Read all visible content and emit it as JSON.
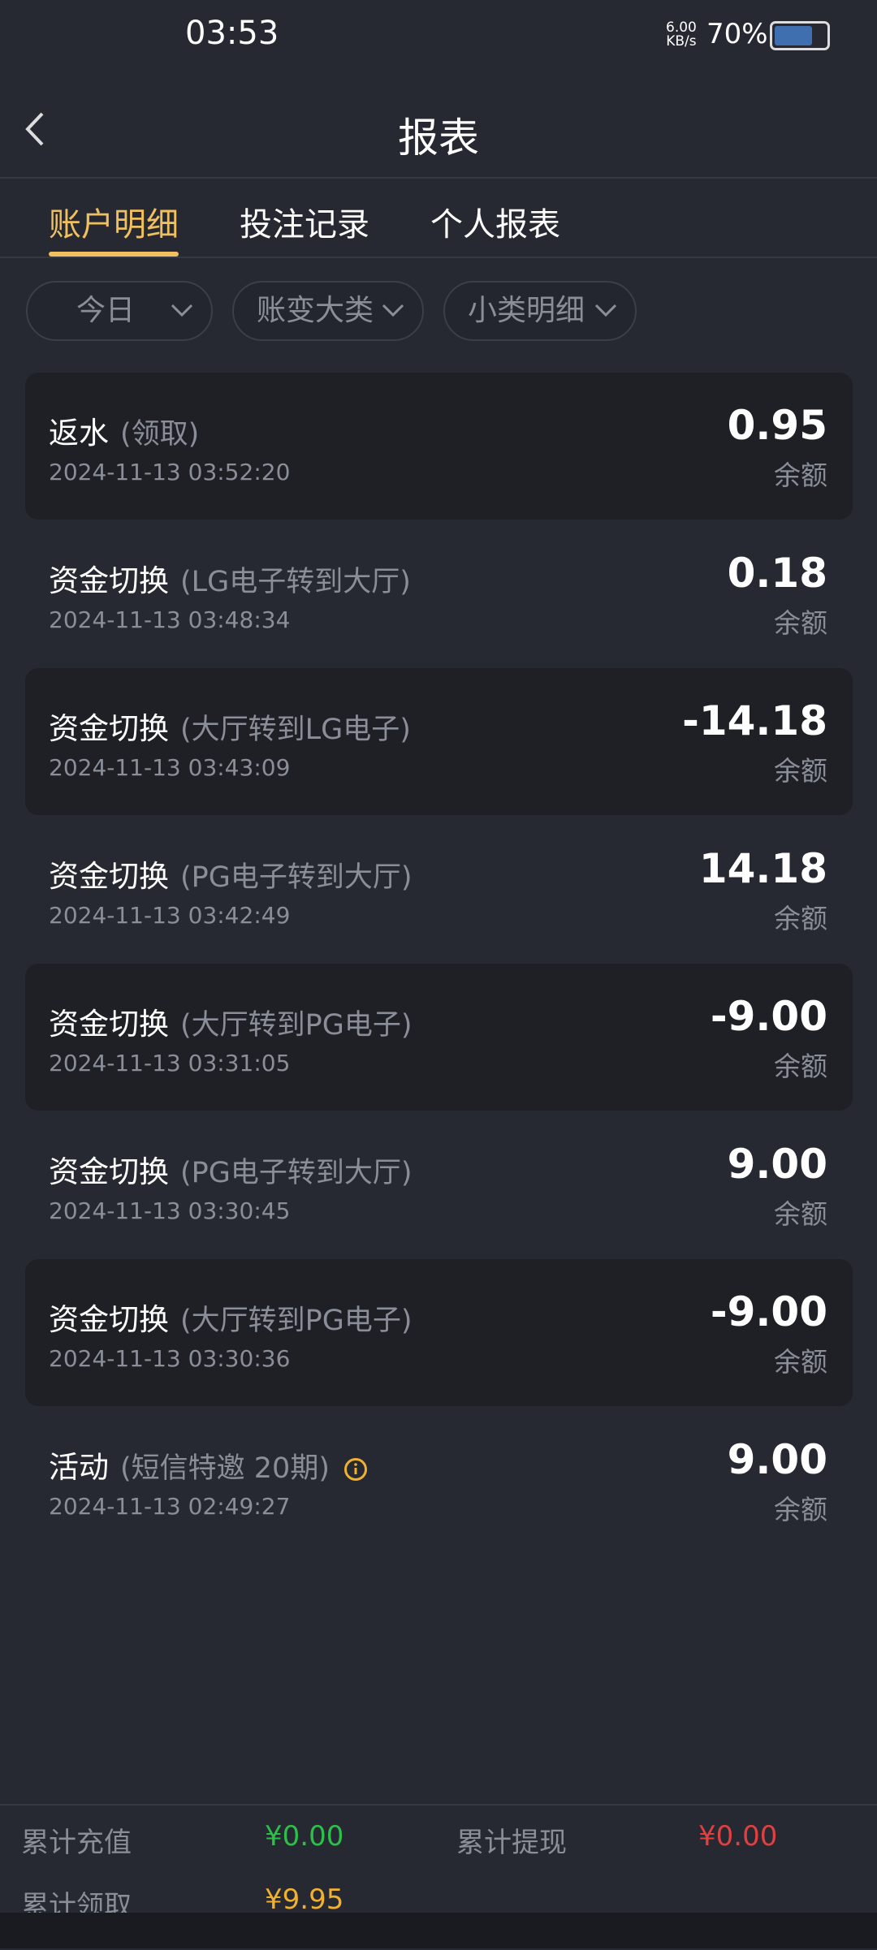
{
  "status_bar": {
    "time": "03:53",
    "net_speed": "6.00",
    "net_unit": "KB/s",
    "battery": "70%"
  },
  "header": {
    "title": "报表"
  },
  "tabs": [
    "账户明细",
    "投注记录",
    "个人报表"
  ],
  "filters": [
    "今日",
    "账变大类",
    "小类明细"
  ],
  "records": [
    {
      "title": "返水",
      "detail": "(领取)",
      "time": "2024-11-13 03:52:20",
      "amount": "0.95",
      "balance_label": "余额"
    },
    {
      "title": "资金切换",
      "detail": "(LG电子转到大厅)",
      "time": "2024-11-13 03:48:34",
      "amount": "0.18",
      "balance_label": "余额"
    },
    {
      "title": "资金切换",
      "detail": "(大厅转到LG电子)",
      "time": "2024-11-13 03:43:09",
      "amount": "-14.18",
      "balance_label": "余额"
    },
    {
      "title": "资金切换",
      "detail": "(PG电子转到大厅)",
      "time": "2024-11-13 03:42:49",
      "amount": "14.18",
      "balance_label": "余额"
    },
    {
      "title": "资金切换",
      "detail": "(大厅转到PG电子)",
      "time": "2024-11-13 03:31:05",
      "amount": "-9.00",
      "balance_label": "余额"
    },
    {
      "title": "资金切换",
      "detail": "(PG电子转到大厅)",
      "time": "2024-11-13 03:30:45",
      "amount": "9.00",
      "balance_label": "余额"
    },
    {
      "title": "资金切换",
      "detail": "(大厅转到PG电子)",
      "time": "2024-11-13 03:30:36",
      "amount": "-9.00",
      "balance_label": "余额"
    },
    {
      "title": "活动",
      "detail": "(短信特邀 20期)",
      "time": "2024-11-13 02:49:27",
      "amount": "9.00",
      "balance_label": "余额"
    }
  ],
  "summary": {
    "deposit_label": "累计充值",
    "deposit": "¥0.00",
    "withdraw_label": "累计提现",
    "withdraw": "¥0.00",
    "claim_label": "累计领取",
    "claim": "¥9.95"
  }
}
